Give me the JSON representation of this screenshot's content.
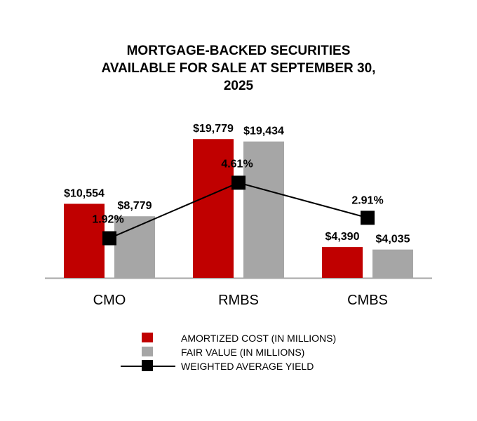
{
  "title_lines": [
    "MORTGAGE-BACKED SECURITIES",
    "AVAILABLE FOR SALE AT SEPTEMBER 30,",
    "2025"
  ],
  "chart_data": {
    "type": "bar",
    "title": "MORTGAGE-BACKED SECURITIES AVAILABLE FOR SALE AT SEPTEMBER 30, 2025",
    "categories": [
      "CMO",
      "RMBS",
      "CMBS"
    ],
    "series": [
      {
        "name": "AMORTIZED COST (IN MILLIONS)",
        "type": "bar",
        "axis": "primary",
        "color": "#c00000",
        "values": [
          10554,
          19779,
          4390
        ],
        "labels": [
          "$10,554",
          "$19,779",
          "$4,390"
        ]
      },
      {
        "name": "FAIR VALUE (IN MILLIONS)",
        "type": "bar",
        "axis": "primary",
        "color": "#a6a6a6",
        "values": [
          8779,
          19434,
          4035
        ],
        "labels": [
          "$8,779",
          "$19,434",
          "$4,035"
        ]
      },
      {
        "name": "WEIGHTED AVERAGE YIELD",
        "type": "line",
        "axis": "secondary",
        "color": "#000000",
        "marker": "square",
        "values": [
          1.92,
          4.61,
          2.91
        ],
        "labels": [
          "1.92%",
          "4.61%",
          "2.91%"
        ]
      }
    ],
    "ylim": [
      0,
      20000
    ],
    "y2lim": [
      0,
      6.8
    ],
    "xlabel": "",
    "ylabel": "",
    "grid": false,
    "legend_position": "bottom"
  },
  "colors": {
    "axis": "#a6a6a6",
    "text": "#000000"
  }
}
